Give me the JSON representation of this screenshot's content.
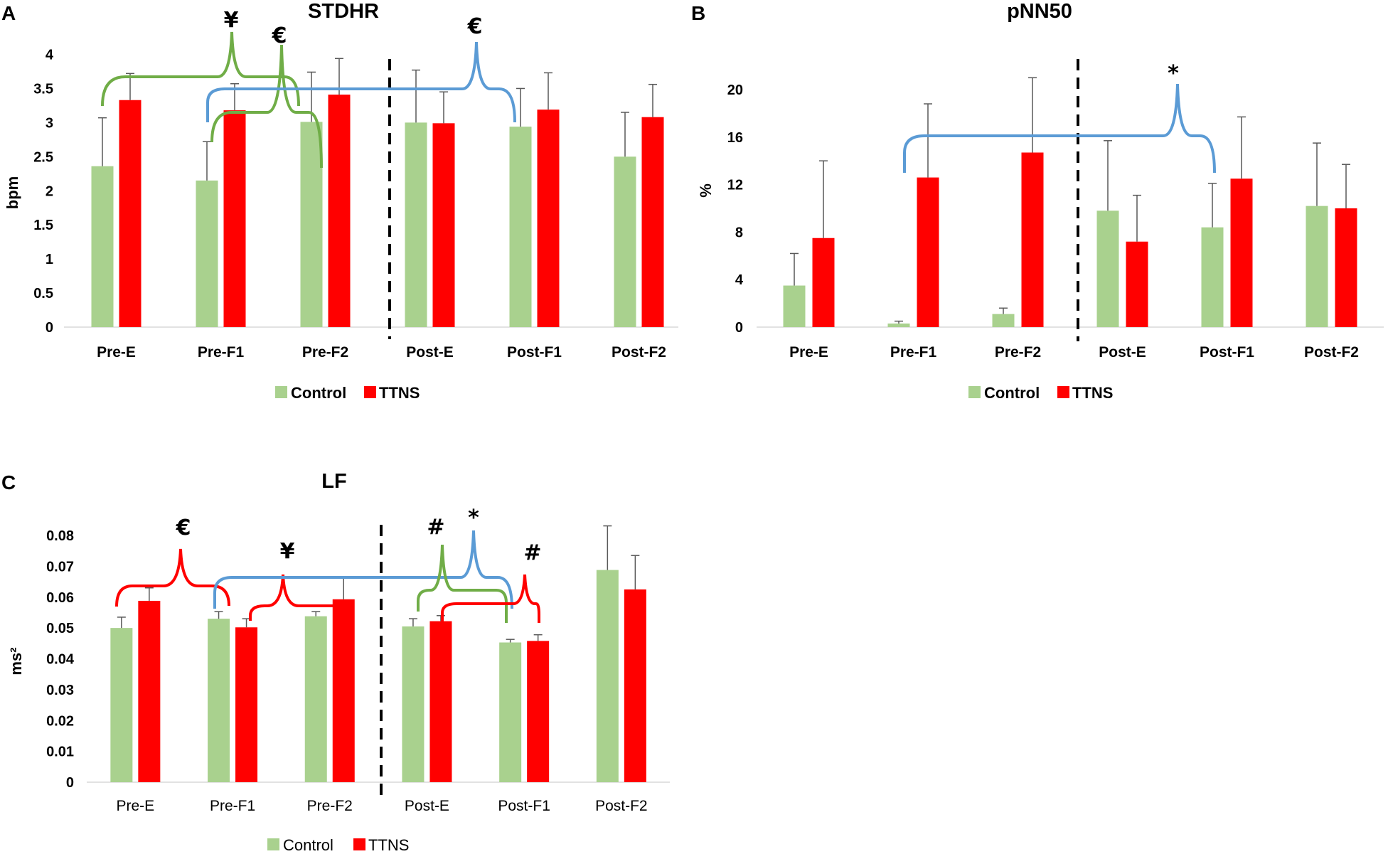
{
  "chart_data": [
    {
      "panel": "A",
      "type": "bar",
      "title": "STDHR",
      "ylabel": "bpm",
      "xlabel": "",
      "ylim": [
        0,
        4
      ],
      "yticks": [
        "0",
        "0.5",
        "1",
        "1.5",
        "2",
        "2.5",
        "3",
        "3.5",
        "4"
      ],
      "categories": [
        "Pre-E",
        "Pre-F1",
        "Pre-F2",
        "Post-E",
        "Post-F1",
        "Post-F2"
      ],
      "series": [
        {
          "name": "Control",
          "values": [
            2.36,
            2.15,
            3.01,
            3.0,
            2.94,
            2.5
          ],
          "errors": [
            0.71,
            0.57,
            0.73,
            0.77,
            0.56,
            0.65
          ]
        },
        {
          "name": "TTNS",
          "values": [
            3.33,
            3.18,
            3.41,
            2.99,
            3.19,
            3.08
          ],
          "errors": [
            0.39,
            0.39,
            0.53,
            0.46,
            0.54,
            0.48
          ]
        }
      ],
      "annotations": [
        "¥",
        "€",
        "€"
      ],
      "legend": "bottom"
    },
    {
      "panel": "B",
      "type": "bar",
      "title": "pNN50",
      "ylabel": "%",
      "xlabel": "",
      "ylim": [
        0,
        20
      ],
      "yticks": [
        "0",
        "4",
        "8",
        "12",
        "16",
        "20"
      ],
      "categories": [
        "Pre-E",
        "Pre-F1",
        "Pre-F2",
        "Post-E",
        "Post-F1",
        "Post-F2"
      ],
      "series": [
        {
          "name": "Control",
          "values": [
            3.5,
            0.3,
            1.1,
            9.8,
            8.4,
            10.2
          ],
          "errors": [
            2.7,
            0.2,
            0.5,
            5.9,
            3.7,
            5.3
          ]
        },
        {
          "name": "TTNS",
          "values": [
            7.5,
            12.6,
            14.7,
            7.2,
            12.5,
            10.0
          ],
          "errors": [
            6.5,
            6.2,
            6.3,
            3.9,
            5.2,
            3.7
          ]
        }
      ],
      "annotations": [
        "*"
      ],
      "legend": "bottom"
    },
    {
      "panel": "C",
      "type": "bar",
      "title": "LF",
      "ylabel": "ms²",
      "xlabel": "",
      "ylim": [
        0,
        0.08
      ],
      "yticks": [
        "0",
        "0.01",
        "0.02",
        "0.03",
        "0.04",
        "0.05",
        "0.06",
        "0.07",
        "0.08"
      ],
      "categories": [
        "Pre-E",
        "Pre-F1",
        "Pre-F2",
        "Post-E",
        "Post-F1",
        "Post-F2"
      ],
      "series": [
        {
          "name": "Control",
          "values": [
            0.05,
            0.053,
            0.0538,
            0.0505,
            0.0453,
            0.0688
          ],
          "errors": [
            0.0035,
            0.0023,
            0.0015,
            0.0025,
            0.001,
            0.0143
          ]
        },
        {
          "name": "TTNS",
          "values": [
            0.0588,
            0.0502,
            0.0593,
            0.0522,
            0.0458,
            0.0625
          ],
          "errors": [
            0.0042,
            0.0028,
            0.007,
            0.0018,
            0.002,
            0.011
          ]
        }
      ],
      "annotations": [
        "€",
        "¥",
        "#",
        "*",
        "#"
      ],
      "legend": "bottom"
    }
  ],
  "colors": {
    "control": "#a9d18e",
    "ttns": "#ff0000",
    "green_brace": "#70ad47",
    "blue_brace": "#5b9bd5",
    "red_brace": "#ff0000"
  }
}
